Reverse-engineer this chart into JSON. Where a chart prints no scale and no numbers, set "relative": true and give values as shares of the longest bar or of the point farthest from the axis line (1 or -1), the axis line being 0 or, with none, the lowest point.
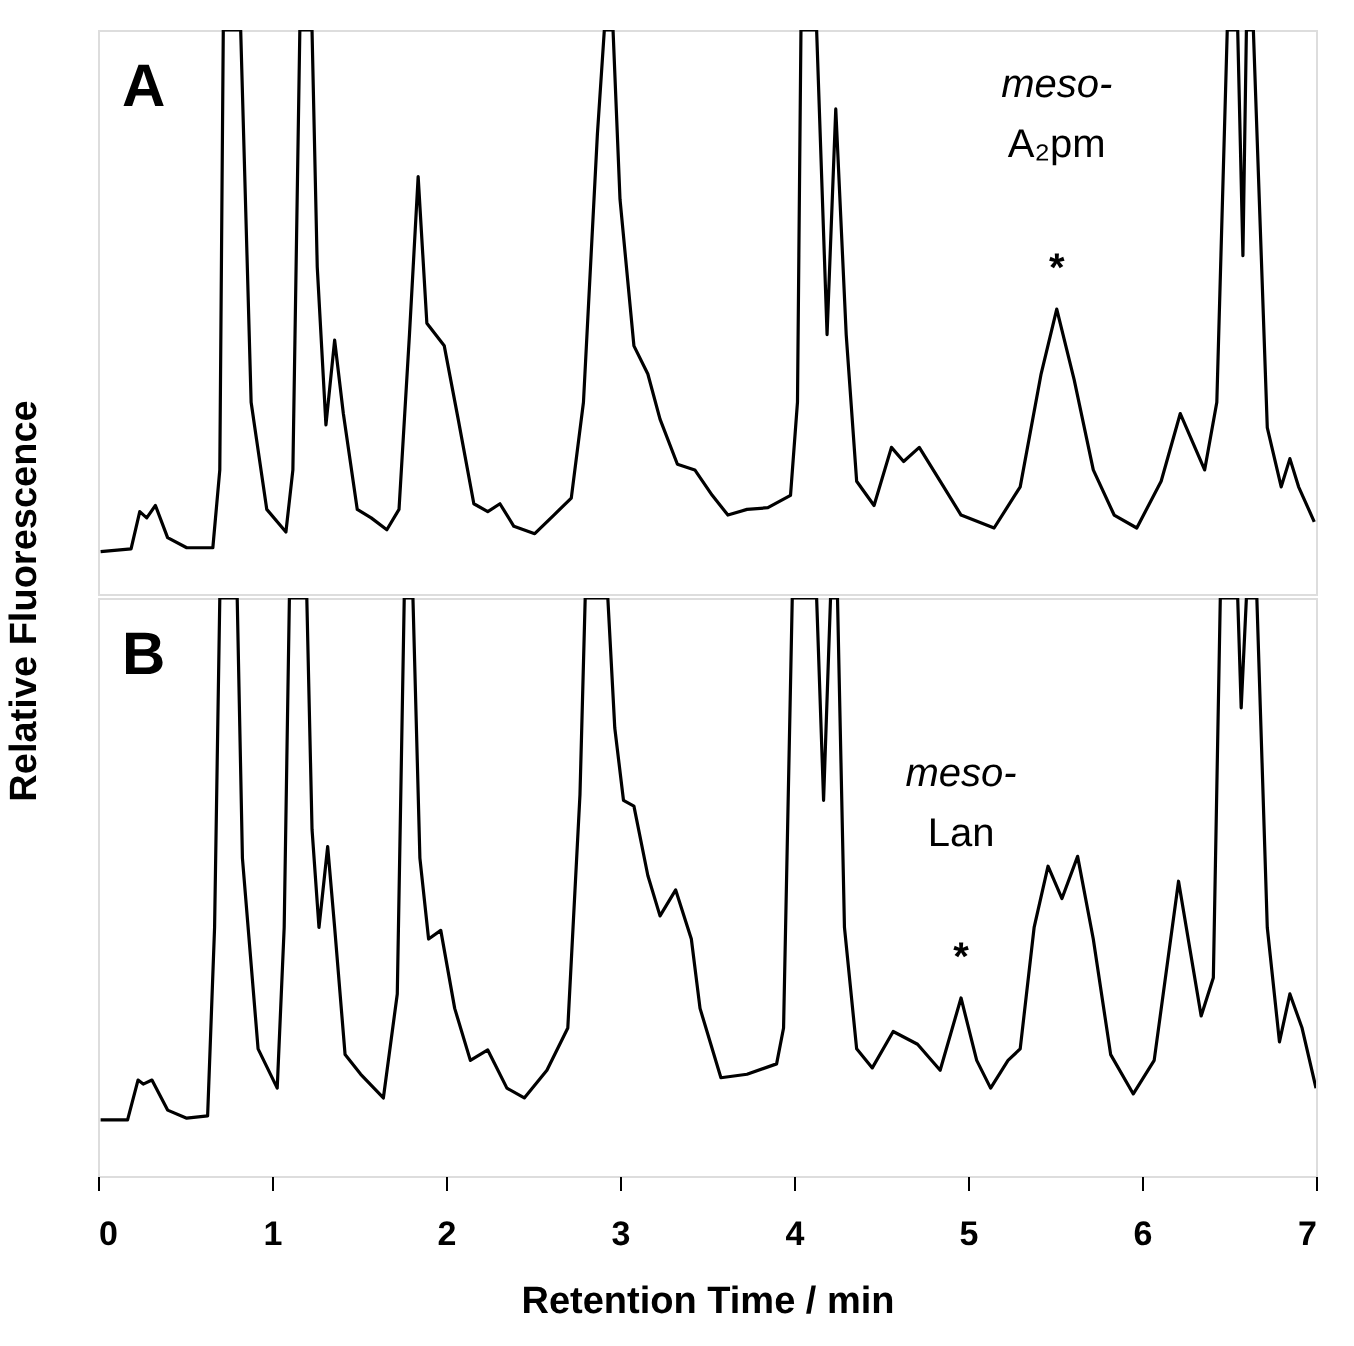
{
  "chart_data": [
    {
      "type": "line",
      "title": "A",
      "relative": true,
      "color": "#000000",
      "tick_labels": false,
      "xlim": [
        0,
        7
      ],
      "xticks": [
        0,
        1,
        2,
        3,
        4,
        5,
        6,
        7
      ],
      "line_style": "solid",
      "marker": "none",
      "x": [
        0.015,
        0.19,
        0.24,
        0.28,
        0.33,
        0.4,
        0.51,
        0.66,
        0.7,
        0.72,
        0.82,
        0.88,
        0.97,
        1.08,
        1.12,
        1.16,
        1.23,
        1.26,
        1.31,
        1.36,
        1.41,
        1.49,
        1.57,
        1.66,
        1.73,
        1.79,
        1.84,
        1.89,
        1.94,
        1.99,
        2.07,
        2.16,
        2.24,
        2.31,
        2.39,
        2.51,
        2.62,
        2.72,
        2.79,
        2.87,
        2.91,
        2.96,
        3.0,
        3.08,
        3.16,
        3.23,
        3.33,
        3.43,
        3.53,
        3.62,
        3.73,
        3.85,
        3.98,
        4.02,
        4.04,
        4.13,
        4.19,
        4.24,
        4.3,
        4.36,
        4.46,
        4.56,
        4.63,
        4.72,
        4.84,
        4.96,
        5.15,
        5.3,
        5.42,
        5.51,
        5.61,
        5.72,
        5.84,
        5.97,
        6.11,
        6.22,
        6.36,
        6.43,
        6.49,
        6.55,
        6.58,
        6.6,
        6.64,
        6.72,
        6.8,
        6.85,
        6.9,
        6.99
      ],
      "values": [
        0.075,
        0.08,
        0.146,
        0.135,
        0.157,
        0.1,
        0.082,
        0.082,
        0.22,
        1,
        1,
        0.34,
        0.15,
        0.11,
        0.22,
        1,
        1,
        0.58,
        0.3,
        0.45,
        0.32,
        0.15,
        0.135,
        0.114,
        0.15,
        0.46,
        0.74,
        0.48,
        0.46,
        0.44,
        0.31,
        0.16,
        0.146,
        0.16,
        0.12,
        0.107,
        0.14,
        0.17,
        0.34,
        0.815,
        1,
        1,
        0.7,
        0.44,
        0.39,
        0.31,
        0.23,
        0.22,
        0.175,
        0.14,
        0.15,
        0.153,
        0.175,
        0.34,
        1,
        1,
        0.46,
        0.86,
        0.46,
        0.2,
        0.157,
        0.26,
        0.235,
        0.26,
        0.2,
        0.14,
        0.117,
        0.19,
        0.39,
        0.505,
        0.38,
        0.22,
        0.14,
        0.117,
        0.2,
        0.32,
        0.22,
        0.34,
        1,
        1,
        0.6,
        1,
        1,
        0.295,
        0.19,
        0.24,
        0.19,
        0.128
      ],
      "annotations": [
        {
          "text": "*",
          "x": 5.51,
          "y": 0.505
        },
        "meso-A₂pm"
      ]
    },
    {
      "type": "line",
      "title": "B",
      "relative": true,
      "color": "#000000",
      "tick_labels": "x",
      "xlim": [
        0,
        7
      ],
      "xticks": [
        0,
        1,
        2,
        3,
        4,
        5,
        6,
        7
      ],
      "line_style": "solid",
      "marker": "none",
      "xlabel": "Retention Time / min",
      "ylabel": "Relative Fluorescence",
      "x": [
        0.015,
        0.17,
        0.23,
        0.26,
        0.31,
        0.4,
        0.51,
        0.63,
        0.67,
        0.7,
        0.8,
        0.83,
        0.92,
        1.03,
        1.07,
        1.1,
        1.2,
        1.23,
        1.27,
        1.32,
        1.36,
        1.42,
        1.51,
        1.64,
        1.72,
        1.76,
        1.81,
        1.85,
        1.9,
        1.97,
        2.05,
        2.14,
        2.24,
        2.35,
        2.45,
        2.58,
        2.7,
        2.77,
        2.8,
        2.93,
        2.97,
        3.02,
        3.08,
        3.16,
        3.23,
        3.32,
        3.41,
        3.46,
        3.58,
        3.73,
        3.9,
        3.94,
        3.99,
        4.13,
        4.17,
        4.21,
        4.25,
        4.29,
        4.36,
        4.45,
        4.57,
        4.71,
        4.84,
        4.96,
        5.05,
        5.13,
        5.23,
        5.3,
        5.38,
        5.46,
        5.54,
        5.63,
        5.72,
        5.82,
        5.95,
        6.07,
        6.21,
        6.34,
        6.41,
        6.45,
        6.55,
        6.57,
        6.6,
        6.66,
        6.72,
        6.79,
        6.85,
        6.92,
        7.0
      ],
      "values": [
        0.097,
        0.097,
        0.166,
        0.159,
        0.166,
        0.114,
        0.1,
        0.104,
        0.43,
        1,
        1,
        0.55,
        0.22,
        0.152,
        0.43,
        1,
        1,
        0.6,
        0.43,
        0.57,
        0.43,
        0.21,
        0.176,
        0.135,
        0.315,
        1,
        1,
        0.55,
        0.41,
        0.425,
        0.29,
        0.2,
        0.218,
        0.152,
        0.135,
        0.183,
        0.256,
        0.66,
        1,
        1,
        0.775,
        0.65,
        0.64,
        0.52,
        0.45,
        0.495,
        0.41,
        0.29,
        0.17,
        0.176,
        0.194,
        0.256,
        1,
        1,
        0.65,
        1,
        1,
        0.43,
        0.22,
        0.187,
        0.25,
        0.228,
        0.183,
        0.308,
        0.2,
        0.152,
        0.2,
        0.22,
        0.43,
        0.536,
        0.48,
        0.553,
        0.41,
        0.21,
        0.142,
        0.2,
        0.51,
        0.277,
        0.343,
        1,
        1,
        0.81,
        1,
        1,
        0.43,
        0.232,
        0.315,
        0.256,
        0.152
      ],
      "annotations": [
        {
          "text": "*",
          "x": 4.96,
          "y": 0.308
        },
        "meso-Lan"
      ]
    }
  ]
}
